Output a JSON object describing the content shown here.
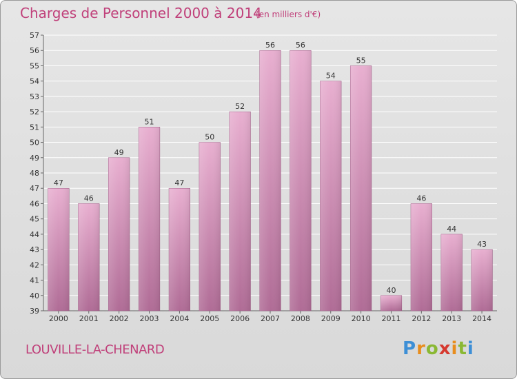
{
  "header": {
    "title": "Charges de Personnel 2000 à 2014",
    "subtitle": "(en milliers d'€)"
  },
  "footer": {
    "commune": "LOUVILLE-LA-CHENARD",
    "logo": [
      "P",
      "r",
      "o",
      "x",
      "i",
      "t",
      "i"
    ]
  },
  "colors": {
    "bar_light": "#e8afd0",
    "bar_dark": "#b06c96",
    "title": "#c0407a",
    "grid": "#ffffff"
  },
  "chart_data": {
    "type": "bar",
    "title": "Charges de Personnel 2000 à 2014",
    "subtitle": "(en milliers d'€)",
    "categories": [
      "2000",
      "2001",
      "2002",
      "2003",
      "2004",
      "2005",
      "2006",
      "2007",
      "2008",
      "2009",
      "2010",
      "2011",
      "2012",
      "2013",
      "2014"
    ],
    "values": [
      47,
      46,
      49,
      51,
      47,
      50,
      52,
      56,
      56,
      54,
      55,
      40,
      46,
      44,
      43
    ],
    "ylim": [
      39,
      57
    ],
    "yticks": [
      39,
      40,
      41,
      42,
      43,
      44,
      45,
      46,
      47,
      48,
      49,
      50,
      51,
      52,
      53,
      54,
      55,
      56,
      57
    ],
    "grid": true,
    "xlabel": "",
    "ylabel": ""
  }
}
